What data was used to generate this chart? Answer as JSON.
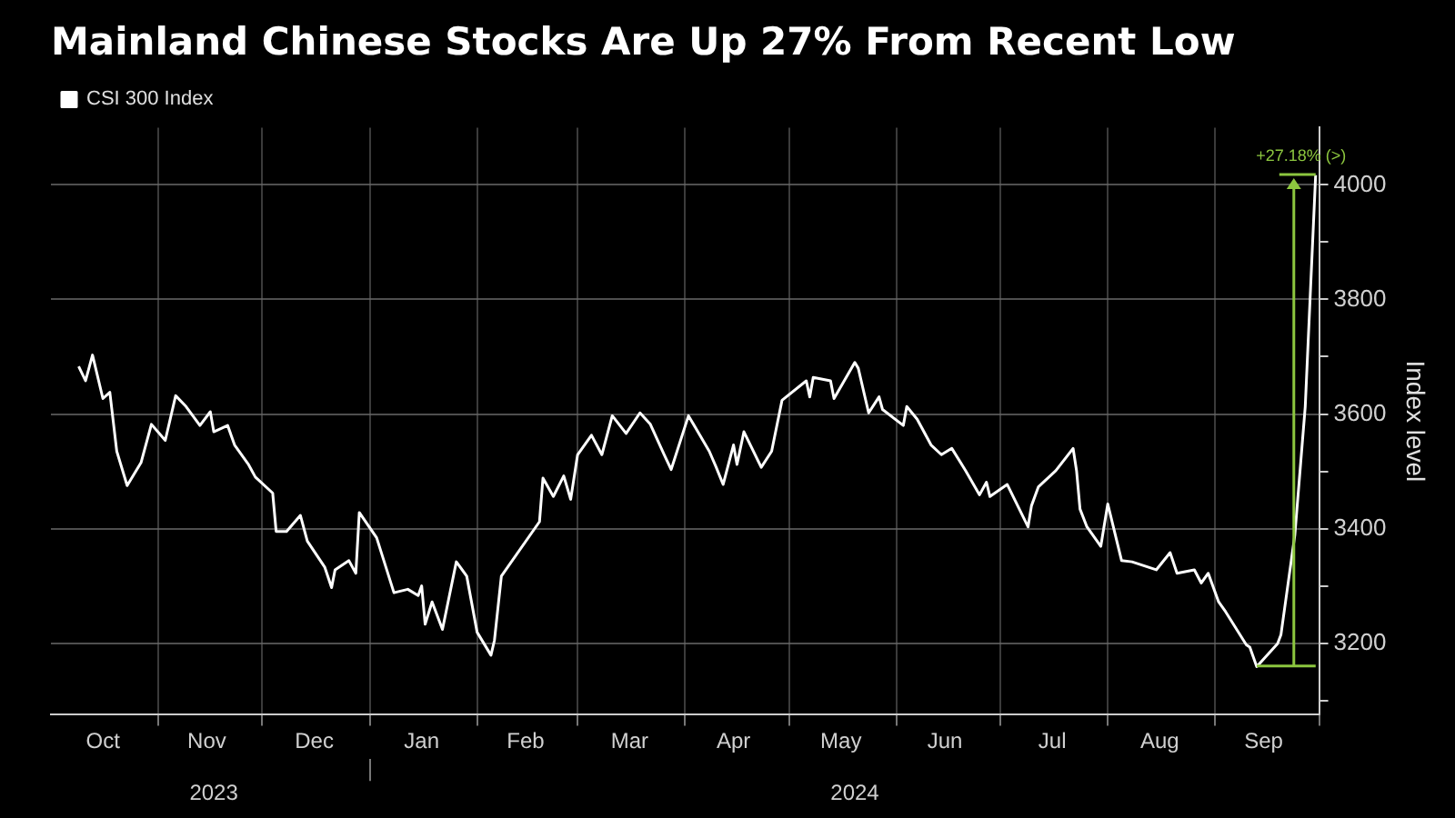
{
  "chart_data": {
    "type": "line",
    "title": "Mainland Chinese Stocks Are Up 27% From Recent Low",
    "ylabel": "Index level",
    "x": [
      "2023-10-09",
      "2023-10-11",
      "2023-10-13",
      "2023-10-16",
      "2023-10-18",
      "2023-10-20",
      "2023-10-23",
      "2023-10-27",
      "2023-10-30",
      "2023-11-03",
      "2023-11-06",
      "2023-11-09",
      "2023-11-13",
      "2023-11-16",
      "2023-11-17",
      "2023-11-21",
      "2023-11-23",
      "2023-11-27",
      "2023-11-29",
      "2023-12-04",
      "2023-12-05",
      "2023-12-08",
      "2023-12-12",
      "2023-12-14",
      "2023-12-19",
      "2023-12-21",
      "2023-12-22",
      "2023-12-26",
      "2023-12-28",
      "2023-12-29",
      "2024-01-03",
      "2024-01-08",
      "2024-01-12",
      "2024-01-15",
      "2024-01-16",
      "2024-01-17",
      "2024-01-19",
      "2024-01-22",
      "2024-01-26",
      "2024-01-29",
      "2024-02-01",
      "2024-02-05",
      "2024-02-06",
      "2024-02-08",
      "2024-02-19",
      "2024-02-20",
      "2024-02-23",
      "2024-02-26",
      "2024-02-28",
      "2024-03-01",
      "2024-03-05",
      "2024-03-08",
      "2024-03-11",
      "2024-03-15",
      "2024-03-19",
      "2024-03-22",
      "2024-03-26",
      "2024-03-28",
      "2024-04-02",
      "2024-04-08",
      "2024-04-10",
      "2024-04-12",
      "2024-04-15",
      "2024-04-16",
      "2024-04-18",
      "2024-04-23",
      "2024-04-26",
      "2024-04-29",
      "2024-05-06",
      "2024-05-07",
      "2024-05-08",
      "2024-05-13",
      "2024-05-14",
      "2024-05-20",
      "2024-05-21",
      "2024-05-24",
      "2024-05-27",
      "2024-05-28",
      "2024-06-03",
      "2024-06-04",
      "2024-06-07",
      "2024-06-11",
      "2024-06-14",
      "2024-06-17",
      "2024-06-21",
      "2024-06-25",
      "2024-06-27",
      "2024-06-28",
      "2024-07-03",
      "2024-07-09",
      "2024-07-10",
      "2024-07-12",
      "2024-07-17",
      "2024-07-22",
      "2024-07-23",
      "2024-07-24",
      "2024-07-26",
      "2024-07-30",
      "2024-08-01",
      "2024-08-05",
      "2024-08-08",
      "2024-08-15",
      "2024-08-19",
      "2024-08-21",
      "2024-08-26",
      "2024-08-28",
      "2024-08-30",
      "2024-09-02",
      "2024-09-04",
      "2024-09-10",
      "2024-09-11",
      "2024-09-13",
      "2024-09-19",
      "2024-09-20",
      "2024-09-24",
      "2024-09-27",
      "2024-09-30"
    ],
    "series": [
      {
        "name": "CSI 300 Index",
        "color": "#ffffff",
        "values": [
          3683,
          3658,
          3703,
          3627,
          3638,
          3535,
          3475,
          3515,
          3582,
          3554,
          3632,
          3613,
          3580,
          3604,
          3569,
          3580,
          3546,
          3512,
          3490,
          3462,
          3395,
          3395,
          3423,
          3378,
          3333,
          3297,
          3328,
          3344,
          3322,
          3428,
          3384,
          3288,
          3294,
          3283,
          3300,
          3233,
          3272,
          3224,
          3342,
          3317,
          3219,
          3179,
          3205,
          3317,
          3412,
          3488,
          3456,
          3492,
          3451,
          3529,
          3563,
          3529,
          3597,
          3566,
          3602,
          3582,
          3529,
          3503,
          3597,
          3535,
          3507,
          3477,
          3546,
          3512,
          3569,
          3507,
          3535,
          3624,
          3658,
          3630,
          3664,
          3658,
          3627,
          3690,
          3680,
          3602,
          3630,
          3608,
          3580,
          3613,
          3591,
          3546,
          3529,
          3540,
          3501,
          3459,
          3481,
          3456,
          3477,
          3403,
          3440,
          3473,
          3501,
          3540,
          3501,
          3434,
          3403,
          3369,
          3443,
          3344,
          3342,
          3328,
          3358,
          3322,
          3328,
          3305,
          3322,
          3272,
          3255,
          3197,
          3193,
          3159,
          3199,
          3215,
          3389,
          3613,
          4017
        ]
      }
    ],
    "xlim": [
      "2023-10-01",
      "2024-10-01"
    ],
    "xticks": [
      {
        "value": "2023-11-01",
        "label": null
      },
      {
        "value": "2023-12-01",
        "label": null
      },
      {
        "value": "2024-01-01",
        "label": null
      },
      {
        "value": "2024-02-01",
        "label": null
      },
      {
        "value": "2024-03-01",
        "label": null
      },
      {
        "value": "2024-04-01",
        "label": null
      },
      {
        "value": "2024-05-01",
        "label": null
      },
      {
        "value": "2024-06-01",
        "label": null
      },
      {
        "value": "2024-07-01",
        "label": null
      },
      {
        "value": "2024-08-01",
        "label": null
      },
      {
        "value": "2024-09-01",
        "label": null
      },
      {
        "value": "2024-10-01",
        "label": null
      },
      {
        "value": "2023-10-16",
        "label": "Oct"
      },
      {
        "value": "2023-11-15",
        "label": "Nov"
      },
      {
        "value": "2023-12-16",
        "label": "Dec"
      },
      {
        "value": "2024-01-16",
        "label": "Jan"
      },
      {
        "value": "2024-02-15",
        "label": "Feb"
      },
      {
        "value": "2024-03-16",
        "label": "Mar"
      },
      {
        "value": "2024-04-15",
        "label": "Apr"
      },
      {
        "value": "2024-05-16",
        "label": "May"
      },
      {
        "value": "2024-06-15",
        "label": "Jun"
      },
      {
        "value": "2024-07-16",
        "label": "Jul"
      },
      {
        "value": "2024-08-16",
        "label": "Aug"
      },
      {
        "value": "2024-09-15",
        "label": "Sep"
      }
    ],
    "x2lim": [
      "2023-10-01",
      "2024-10-01"
    ],
    "x2ticks": [
      {
        "value": "2023-11-17",
        "label": "2023"
      },
      {
        "value": "2024-01-01",
        "label": null
      },
      {
        "value": "2024-05-20",
        "label": "2024"
      }
    ],
    "ylim": [
      3075,
      4100
    ],
    "yticks": [
      {
        "value": 3100,
        "label": null
      },
      3200,
      {
        "value": 3300,
        "label": null
      },
      3400,
      {
        "value": 3500,
        "label": null
      },
      3600,
      {
        "value": 3700,
        "label": null
      },
      3800,
      {
        "value": 3900,
        "label": null
      },
      4000
    ],
    "grid": true,
    "legend": "top left",
    "marker": "none",
    "line_style": "solid",
    "annotations": [
      {
        "text": "+27.18% (>)",
        "x": "2024-09-30",
        "y": 4017
      }
    ]
  }
}
